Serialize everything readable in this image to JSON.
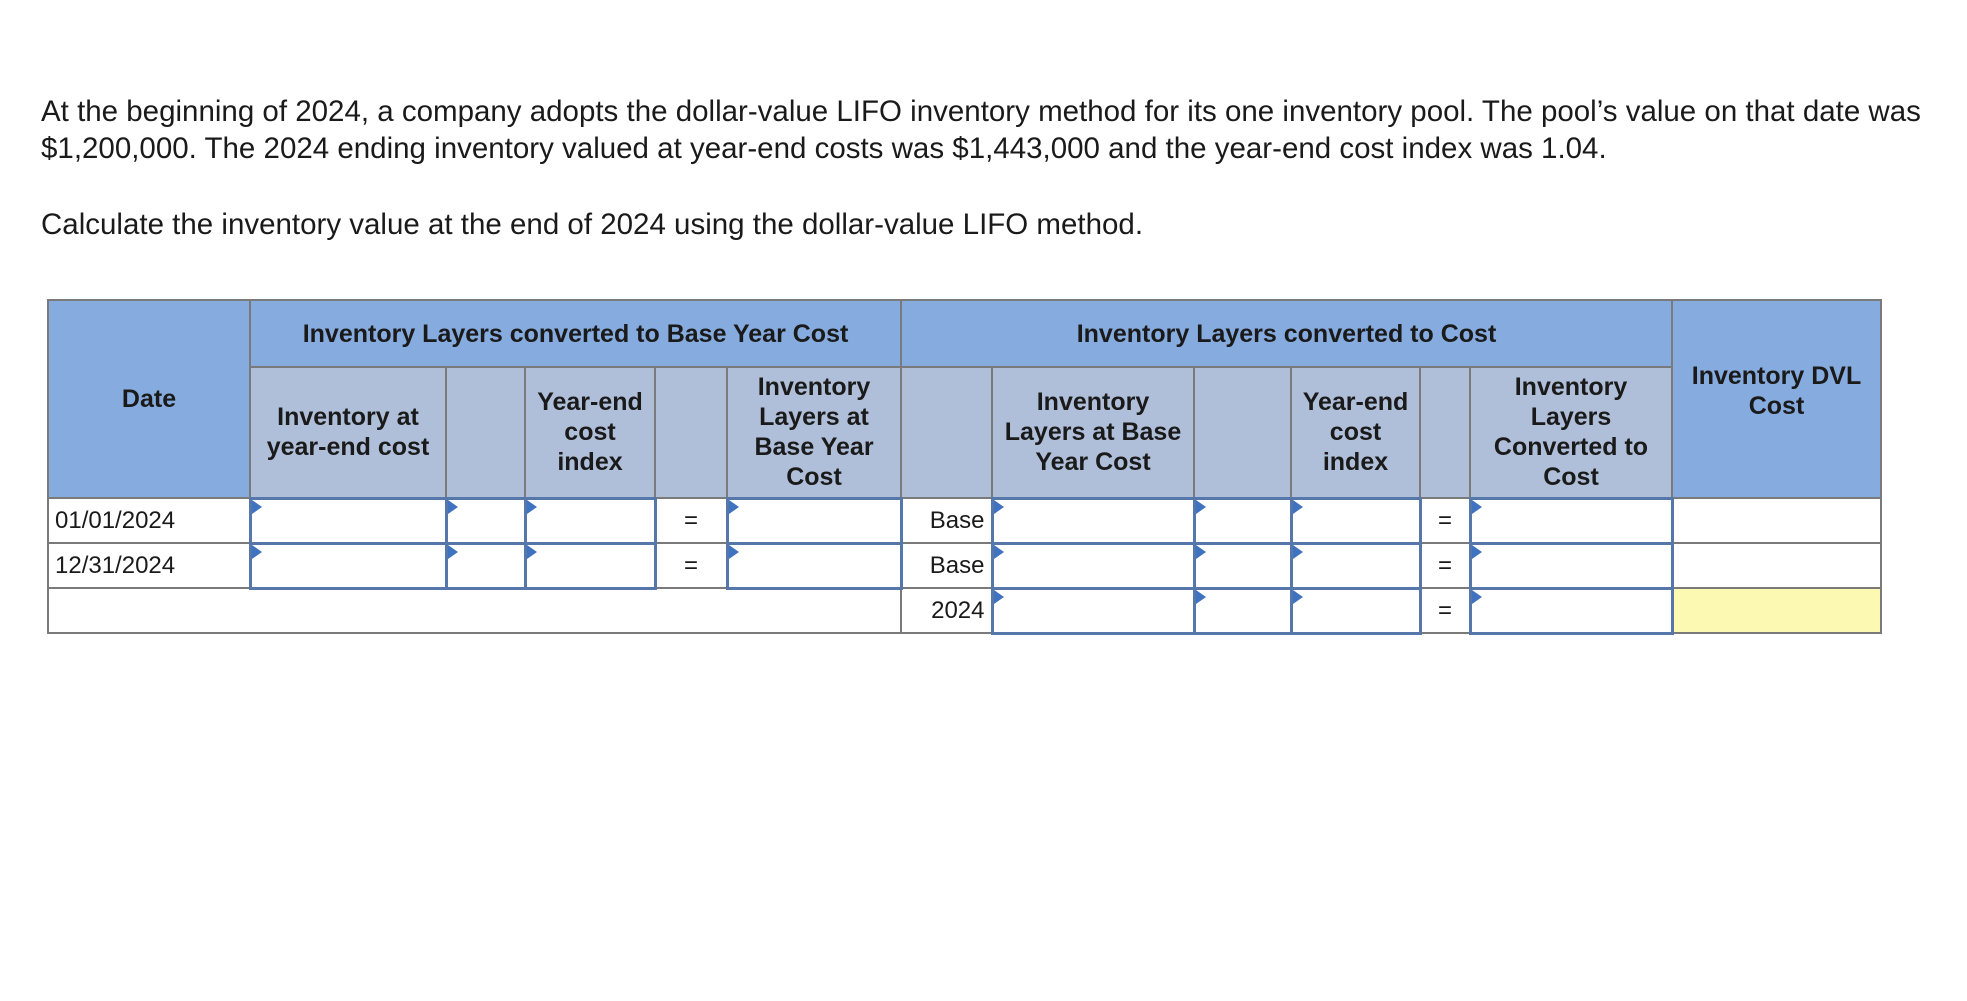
{
  "question": {
    "paragraph1": "At the beginning of 2024, a company adopts the dollar-value LIFO inventory method for its one inventory pool. The pool’s value on that date was $1,200,000. The 2024 ending inventory valued at year-end costs was $1,443,000 and the year-end cost index was 1.04.",
    "paragraph2": "Calculate the inventory value at the end of 2024 using the dollar-value LIFO method."
  },
  "table": {
    "headers": {
      "date": "Date",
      "group_base": "Inventory Layers converted to Base Year Cost",
      "group_cost": "Inventory Layers converted to Cost",
      "dvl_cost": "Inventory DVL Cost",
      "inv_year_end_cost": "Inventory at year-end cost",
      "year_end_index_1": "Year-end cost index",
      "layers_base_year": "Inventory Layers at Base Year Cost",
      "layers_base_year_2": "Inventory Layers at Base Year Cost",
      "year_end_index_2": "Year-end cost index",
      "layers_converted": "Inventory Layers Converted to Cost"
    },
    "rows": [
      {
        "date": "01/01/2024",
        "eq1": "=",
        "layer_label": "Base",
        "eq2": "="
      },
      {
        "date": "12/31/2024",
        "eq1": "=",
        "layer_label": "Base",
        "eq2": "="
      },
      {
        "layer_label": "2024",
        "eq2": "="
      }
    ]
  }
}
